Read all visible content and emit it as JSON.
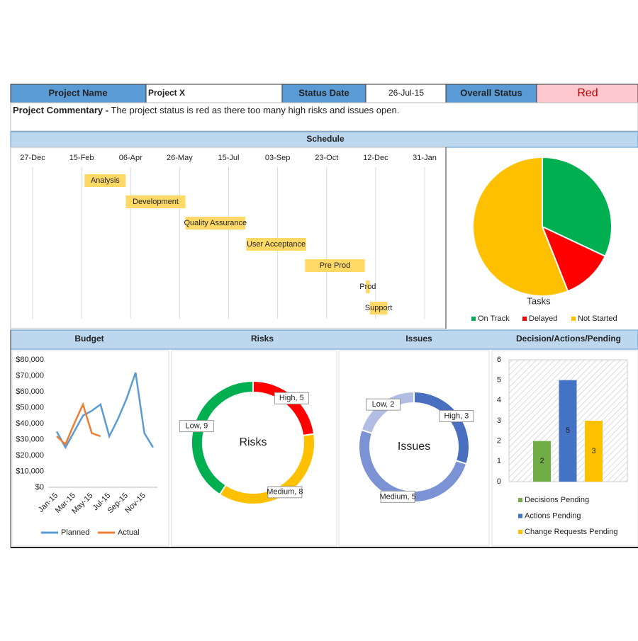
{
  "header": {
    "project_name_label": "Project Name",
    "project_name": "Project X",
    "status_date_label": "Status Date",
    "status_date": "26-Jul-15",
    "overall_status_label": "Overall Status",
    "overall_status": "Red"
  },
  "commentary": {
    "label": "Project Commentary -",
    "text": "The project status is red as there too many high risks and issues open."
  },
  "sections": [
    "Schedule",
    "Budget",
    "Risks",
    "Issues",
    "Decision/Actions/Pending"
  ],
  "chart_data": [
    {
      "type": "gantt",
      "categories": [
        "Analysis",
        "Development",
        "Quality Assurance",
        "User Acceptance",
        "Pre Prod",
        "Prod",
        "Support"
      ],
      "start": [
        53,
        95,
        156,
        218,
        278,
        340,
        344
      ],
      "duration": [
        42,
        61,
        61,
        61,
        61,
        4,
        18
      ],
      "color": "#ffd966",
      "xlim": [
        0,
        400
      ],
      "xticks": [
        {
          "value": 0,
          "label": "27-Dec"
        },
        {
          "value": 50,
          "label": "15-Feb"
        },
        {
          "value": 100,
          "label": "06-Apr"
        },
        {
          "value": 150,
          "label": "26-May"
        },
        {
          "value": 200,
          "label": "15-Jul"
        },
        {
          "value": 250,
          "label": "03-Sep"
        },
        {
          "value": 300,
          "label": "23-Oct"
        },
        {
          "value": 350,
          "label": "12-Dec"
        },
        {
          "value": 400,
          "label": "31-Jan"
        }
      ],
      "grid": true
    },
    {
      "type": "pie",
      "title": "Tasks",
      "categories": [
        "On Track",
        "Delayed",
        "Not Started"
      ],
      "values": [
        32,
        12,
        56
      ],
      "colors": [
        "#00b050",
        "#ff0000",
        "#ffc000"
      ],
      "legend": "bottom"
    },
    {
      "type": "line",
      "categories": [
        "Jan-15",
        null,
        "Mar-15",
        null,
        "May-15",
        null,
        "Jul-15",
        null,
        "Sep-15",
        null,
        "Nov-15",
        null
      ],
      "series": [
        {
          "name": "Planned",
          "color": "#5b9bd5",
          "values": [
            35000,
            25000,
            35000,
            45000,
            48000,
            52000,
            32000,
            43000,
            56000,
            72000,
            34000,
            25000
          ]
        },
        {
          "name": "Actual",
          "color": "#ed7d31",
          "values": [
            32000,
            27000,
            40000,
            52000,
            34000,
            32000,
            null,
            null,
            null,
            null,
            null,
            null
          ]
        }
      ],
      "ylim": [
        0,
        80000
      ],
      "yticks": [
        {
          "value": 0,
          "label": "$0"
        },
        {
          "value": 10000,
          "label": "$10,000"
        },
        {
          "value": 20000,
          "label": "$20,000"
        },
        {
          "value": 30000,
          "label": "$30,000"
        },
        {
          "value": 40000,
          "label": "$40,000"
        },
        {
          "value": 50000,
          "label": "$50,000"
        },
        {
          "value": 60000,
          "label": "$60,000"
        },
        {
          "value": 70000,
          "label": "$70,000"
        },
        {
          "value": 80000,
          "label": "$80,000"
        }
      ],
      "grid": false,
      "legend": "bottom"
    },
    {
      "type": "donut",
      "title": "Risks",
      "categories": [
        "High",
        "Medium",
        "Low"
      ],
      "values": [
        5,
        8,
        9
      ],
      "value_labels": [
        "High, 5",
        "Medium, 8",
        "Low, 9"
      ],
      "colors": [
        "#ff0000",
        "#ffc000",
        "#00b050"
      ]
    },
    {
      "type": "donut",
      "title": "Issues",
      "categories": [
        "High",
        "Medium",
        "Low"
      ],
      "values": [
        3,
        5,
        2
      ],
      "value_labels": [
        "High, 3",
        "Medium, 5",
        "Low, 2"
      ],
      "colors": [
        "#4a6fc0",
        "#7b93d4",
        "#b1bde3"
      ]
    },
    {
      "type": "bar",
      "series": [
        {
          "name": "Decisions Pending",
          "color": "#70ad47",
          "values": [
            2
          ]
        },
        {
          "name": "Actions Pending",
          "color": "#4472c4",
          "values": [
            5
          ]
        },
        {
          "name": "Change Requests Pending",
          "color": "#ffc000",
          "values": [
            3
          ]
        }
      ],
      "ylim": [
        0,
        6
      ],
      "yticks": [
        0,
        1,
        2,
        3,
        4,
        5,
        6
      ],
      "grid": false,
      "legend": "bottom"
    }
  ]
}
